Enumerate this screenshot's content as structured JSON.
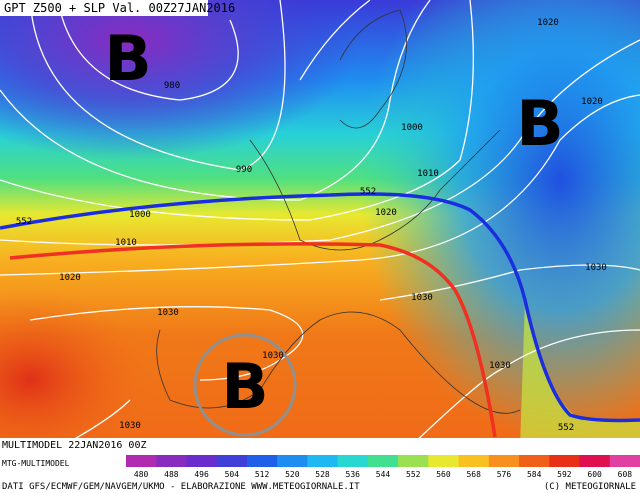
{
  "title": "GPT Z500 + SLP Val. 00Z27JAN2016",
  "pressure_centers": [
    "B",
    "B",
    "B"
  ],
  "isobar_labels": [
    "980",
    "990",
    "1000",
    "1000",
    "1010",
    "1010",
    "1020",
    "1020",
    "1020",
    "1020",
    "1030",
    "1030",
    "1030",
    "1030",
    "1030",
    "1030"
  ],
  "geopotential_labels": [
    "552",
    "552",
    "552"
  ],
  "footer": {
    "run": "MULTIMODEL 22JAN2016 00Z",
    "model": "MTG-MULTIMODEL",
    "credits": "DATI GFS/ECMWF/GEM/NAVGEM/UKMO - ELABORAZIONE WWW.METEOGIORNALE.IT",
    "copyright": "(C) METEOGIORNALE"
  },
  "legend": {
    "ticks": [
      480,
      488,
      496,
      504,
      512,
      520,
      528,
      536,
      544,
      552,
      560,
      568,
      576,
      584,
      592,
      600,
      608
    ],
    "colors": [
      "#b02bb0",
      "#8a2bc0",
      "#6a2ccc",
      "#4040d8",
      "#2060e8",
      "#1d8ef0",
      "#20b8f0",
      "#28d8d0",
      "#40e090",
      "#9be050",
      "#e8e830",
      "#f8c020",
      "#f89020",
      "#f06018",
      "#e83018",
      "#e01050",
      "#e040a0"
    ]
  }
}
